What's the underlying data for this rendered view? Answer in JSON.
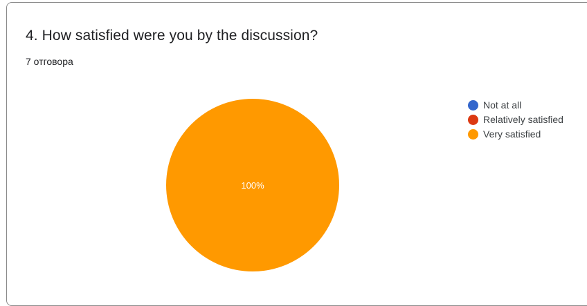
{
  "question": {
    "title": "4. How satisfied were you by the discussion?",
    "responses": "7 отговора"
  },
  "chart_data": {
    "type": "pie",
    "categories": [
      "Not at all",
      "Relatively satisfied",
      "Very satisfied"
    ],
    "values": [
      0,
      0,
      100
    ],
    "colors": [
      "#3366cc",
      "#dc3912",
      "#ff9900"
    ],
    "slice_labels": [
      "",
      "",
      "100%"
    ],
    "legend_position": "right"
  }
}
